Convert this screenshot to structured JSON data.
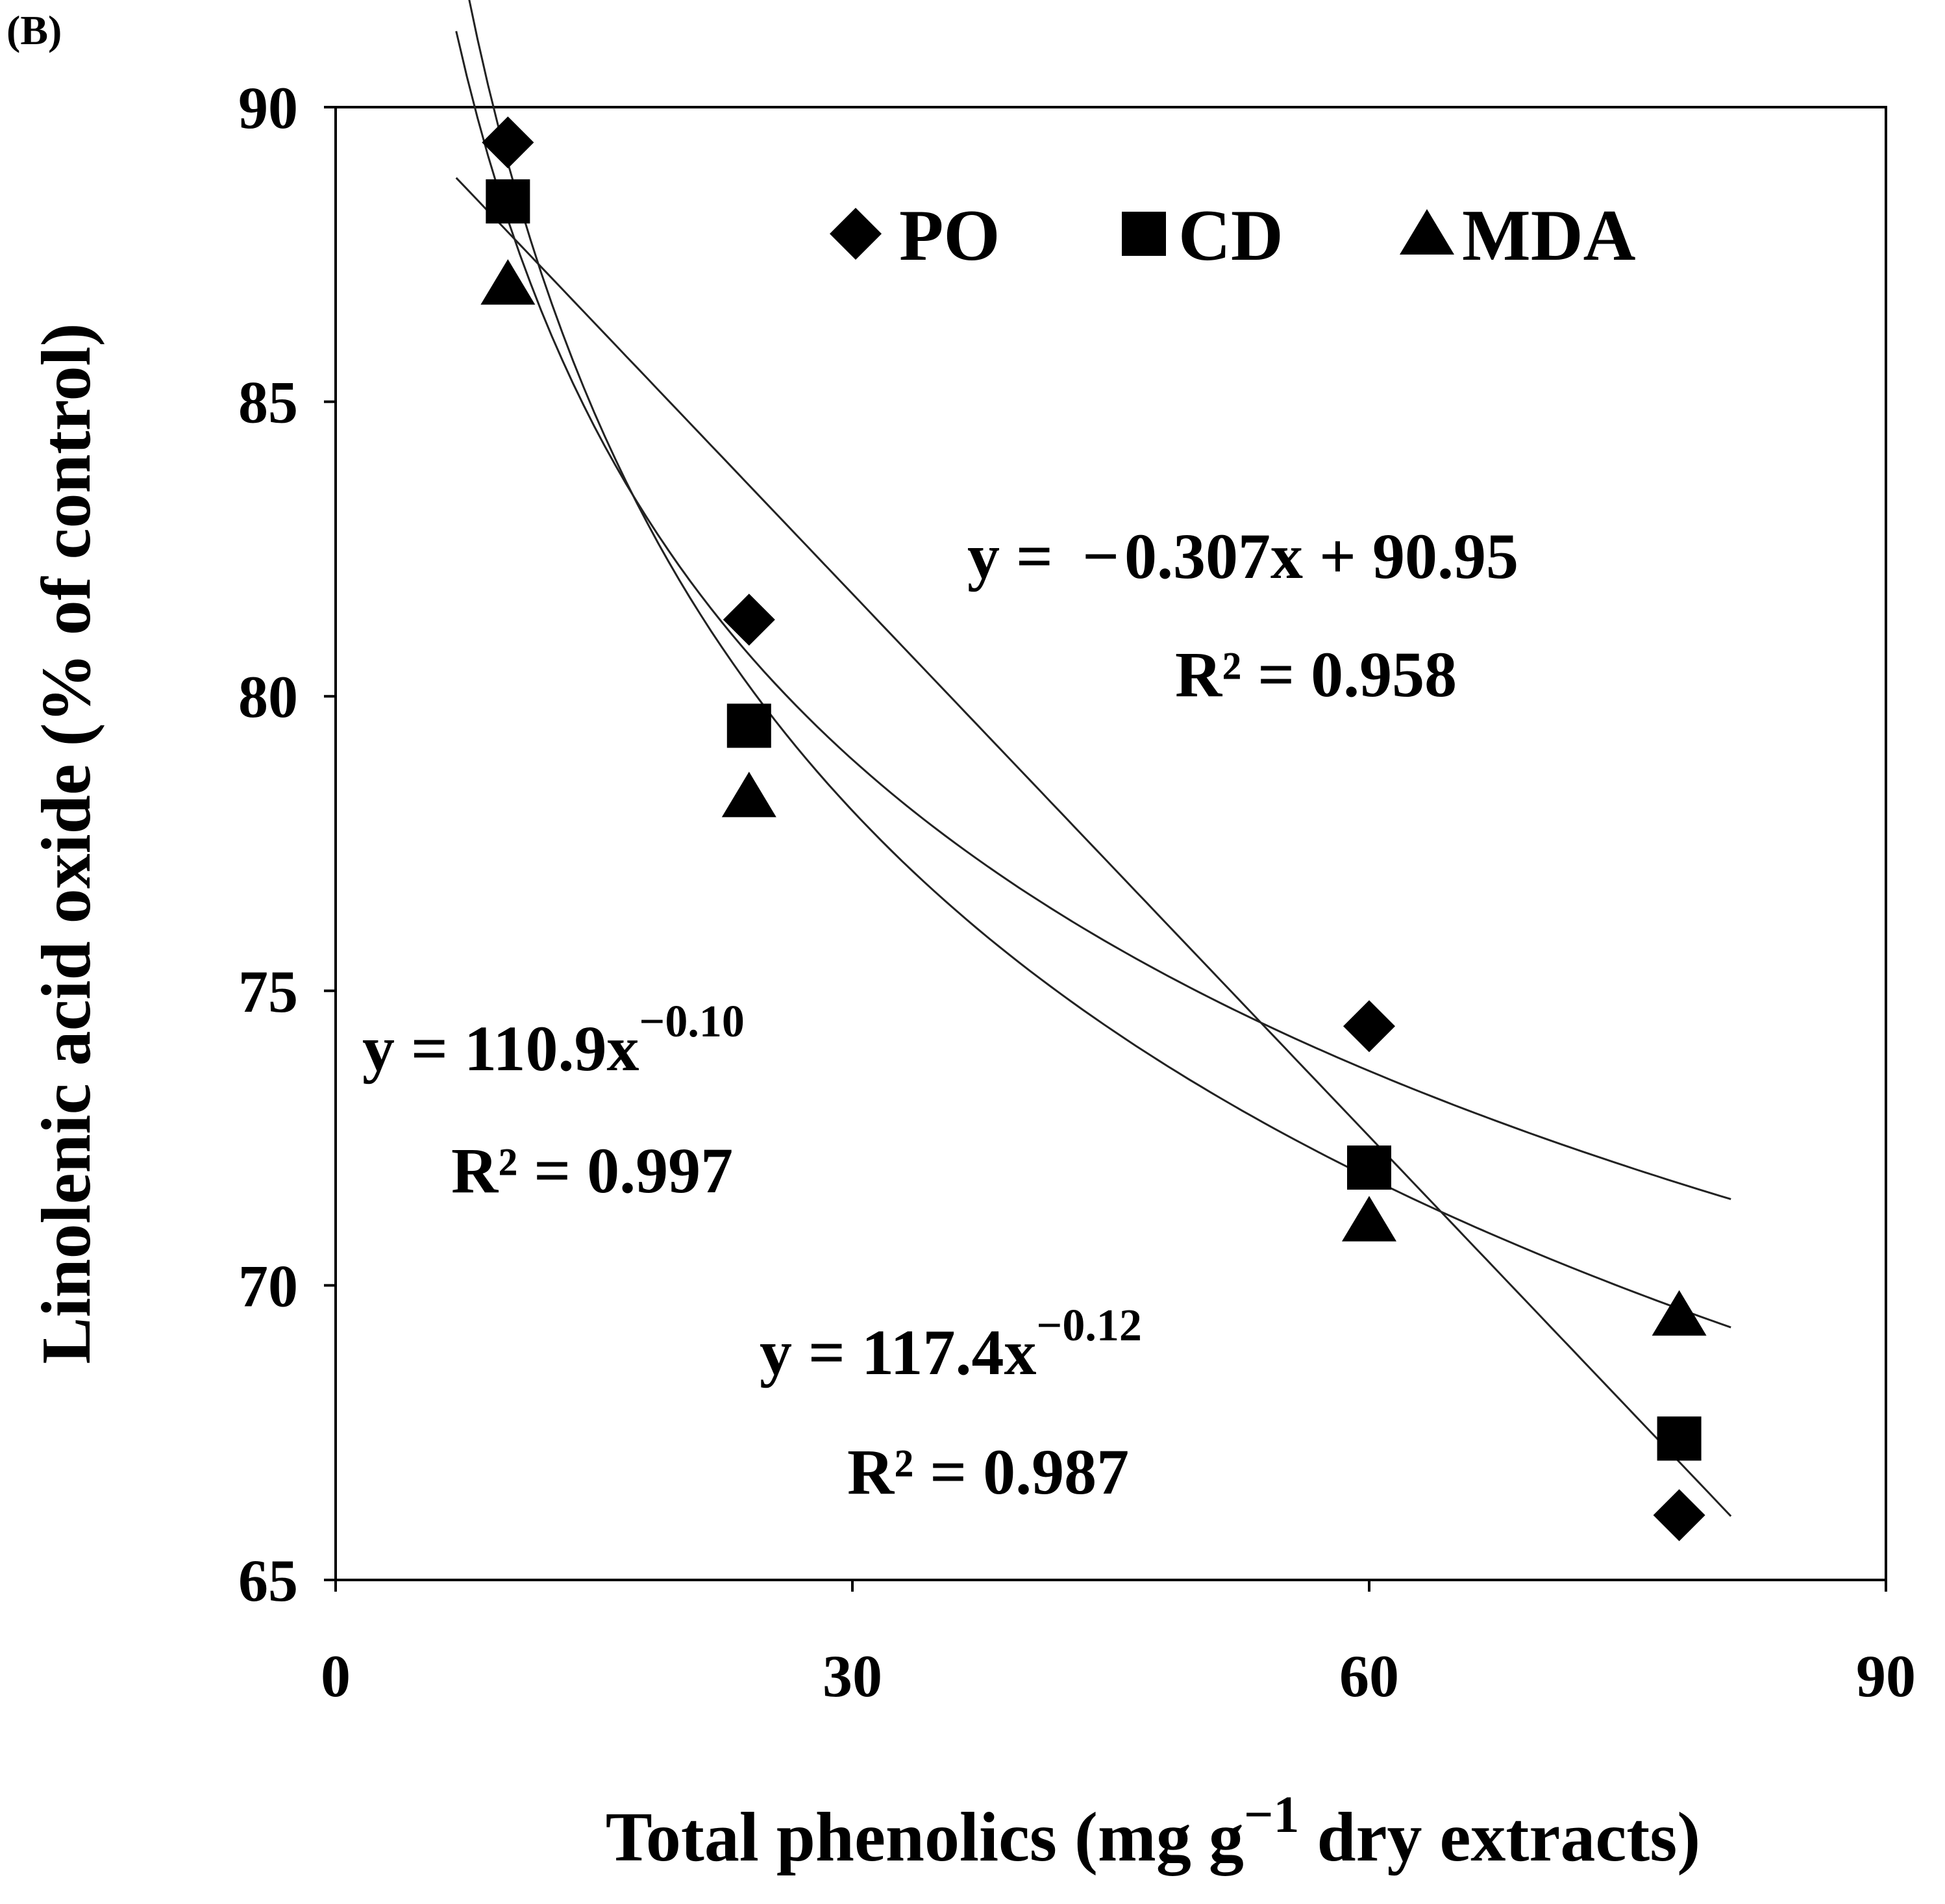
{
  "panel_label": "(B)",
  "chart_data": {
    "type": "scatter",
    "title": "",
    "xlabel_parts": [
      "Total phenolics (mg g",
      "−1",
      " dry extracts)"
    ],
    "ylabel": "Linolenic acid oxide (% of control)",
    "xlim": [
      0,
      90
    ],
    "ylim": [
      65,
      90
    ],
    "xticks": [
      0,
      30,
      60,
      90
    ],
    "yticks": [
      65,
      70,
      75,
      80,
      85,
      90
    ],
    "legend_position": "top-right",
    "series": [
      {
        "name": "PO",
        "marker": "diamond",
        "x": [
          10,
          24,
          60,
          78
        ],
        "y": [
          89.4,
          81.3,
          74.4,
          66.1
        ],
        "fit": {
          "kind": "linear",
          "a": 90.95,
          "b": -0.307,
          "range": [
            7,
            81
          ]
        }
      },
      {
        "name": "CD",
        "marker": "square",
        "x": [
          10,
          24,
          60,
          78
        ],
        "y": [
          88.4,
          79.5,
          72.0,
          67.4
        ],
        "fit": {
          "kind": "power",
          "a": 117.4,
          "b": -0.12,
          "range": [
            7,
            81
          ]
        }
      },
      {
        "name": "MDA",
        "marker": "triangle",
        "x": [
          10,
          24,
          60,
          78
        ],
        "y": [
          87.0,
          78.3,
          71.1,
          69.5
        ],
        "fit": {
          "kind": "power",
          "a": 110.9,
          "b": -0.1,
          "range": [
            7,
            81
          ]
        }
      }
    ],
    "annotations": [
      {
        "id": "po-eq",
        "line1": "y = ",
        "dash": "−",
        "line1b": "0.307x + 90.95",
        "line2": "R² = 0.958"
      },
      {
        "id": "mda-eq",
        "line1": "y = 110.9x",
        "sup": "−0.10",
        "line2": "R² = 0.997"
      },
      {
        "id": "cd-eq",
        "line1": "y = 117.4x",
        "sup": "−0.12",
        "line2": "R² = 0.987"
      }
    ]
  }
}
